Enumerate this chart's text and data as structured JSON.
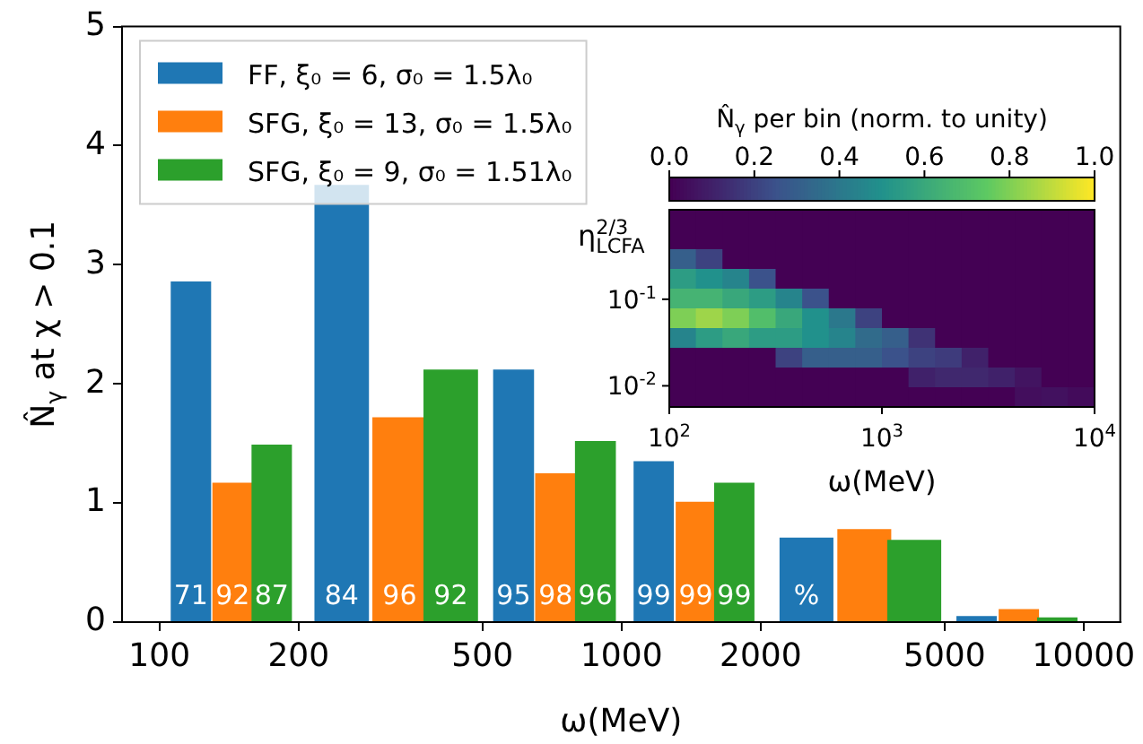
{
  "chart_data": [
    {
      "type": "bar",
      "xlabel": "ω(MeV)",
      "ylabel": "N̂$_{γ}$ at χ > 0.1",
      "log": "x",
      "xlim": [
        83,
        12000
      ],
      "ylim": [
        0,
        5
      ],
      "xticks": [
        100,
        200,
        500,
        1000,
        2000,
        5000,
        10000
      ],
      "yticks": [
        0,
        1,
        2,
        3,
        4,
        5
      ],
      "legend": "top left",
      "annotations": [
        {
          "text": "71",
          "x": 117,
          "y": 0
        },
        {
          "text": "84",
          "x": 248,
          "y": 0
        },
        {
          "text": "95",
          "x": 584,
          "y": 0
        },
        {
          "text": "99",
          "x": 1174,
          "y": 0
        },
        {
          "text": "%",
          "x": 2513,
          "y": 0
        },
        {
          "text": "92",
          "x": 144,
          "y": 0
        },
        {
          "text": "96",
          "x": 331,
          "y": 0
        },
        {
          "text": "98",
          "x": 720,
          "y": 0
        },
        {
          "text": "99",
          "x": 1448,
          "y": 0
        },
        {
          "text": "87",
          "x": 175,
          "y": 0
        },
        {
          "text": "92",
          "x": 427,
          "y": 0
        },
        {
          "text": "96",
          "x": 878,
          "y": 0
        },
        {
          "text": "99",
          "x": 1754,
          "y": 0
        }
      ],
      "series": [
        {
          "name": "FF, ξ₀ = 6, σ₀ = 1.5λ₀",
          "color": "#1f77b4",
          "x": [
            117,
            248,
            584,
            1174,
            2513,
            5866
          ],
          "values": [
            2.86,
            3.67,
            2.12,
            1.35,
            0.71,
            0.05
          ]
        },
        {
          "name": "SFG, ξ₀ = 13, σ₀ = 1.5λ₀",
          "color": "#ff7f0e",
          "x": [
            144,
            331,
            720,
            1448,
            3352,
            7240
          ],
          "values": [
            1.17,
            1.72,
            1.25,
            1.01,
            0.78,
            0.11
          ]
        },
        {
          "name": "SFG, ξ₀ = 9, σ₀ = 1.51λ₀",
          "color": "#2ca02c",
          "x": [
            175,
            427,
            878,
            1754,
            4300,
            8770
          ],
          "values": [
            1.49,
            2.12,
            1.52,
            1.17,
            0.69,
            0.04
          ]
        }
      ]
    },
    {
      "type": "heatmap",
      "xlabel": "ω(MeV)",
      "ylabel": "η$^{2/3}$$_{LCFA}$",
      "clabel": "N̂$_{γ}$ per bin (norm. to unity)",
      "log": "xy",
      "xlim": [
        100,
        10000
      ],
      "ylim": [
        0.0057,
        1.08
      ],
      "xticks": [
        {
          "value": 100,
          "label": "10$^{2}$"
        },
        {
          "value": 1000,
          "label": "10$^{3}$"
        },
        {
          "value": 10000,
          "label": "10$^{4}$"
        }
      ],
      "yticks": [
        {
          "value": 0.1,
          "label": "10$^{-1}$"
        },
        {
          "value": 0.01,
          "label": "10$^{-2}$"
        }
      ],
      "clim": [
        0,
        1
      ],
      "cticks": [
        {
          "value": 0,
          "label": "0.0"
        },
        0.2,
        0.4,
        0.6,
        0.8,
        {
          "value": 1,
          "label": "1.0"
        }
      ],
      "cells": [
        [
          0,
          0,
          0,
          0,
          0,
          0,
          0,
          0,
          0,
          0,
          0,
          0,
          0,
          0,
          0,
          0
        ],
        [
          0,
          0,
          0,
          0,
          0,
          0,
          0,
          0,
          0,
          0,
          0,
          0,
          0,
          0,
          0,
          0
        ],
        [
          0.3,
          0.2,
          0,
          0,
          0,
          0,
          0,
          0,
          0,
          0,
          0,
          0,
          0,
          0,
          0,
          0
        ],
        [
          0.55,
          0.5,
          0.45,
          0.25,
          0,
          0,
          0,
          0,
          0,
          0,
          0,
          0,
          0,
          0,
          0,
          0
        ],
        [
          0.65,
          0.65,
          0.6,
          0.55,
          0.45,
          0.25,
          0,
          0,
          0,
          0,
          0,
          0,
          0,
          0,
          0,
          0
        ],
        [
          0.8,
          0.85,
          0.8,
          0.7,
          0.6,
          0.5,
          0.4,
          0.2,
          0,
          0,
          0,
          0,
          0,
          0,
          0,
          0
        ],
        [
          0.45,
          0.55,
          0.6,
          0.55,
          0.55,
          0.5,
          0.45,
          0.35,
          0.3,
          0.15,
          0,
          0,
          0,
          0,
          0,
          0
        ],
        [
          0,
          0,
          0,
          0,
          0.2,
          0.3,
          0.3,
          0.3,
          0.25,
          0.2,
          0.18,
          0.1,
          0,
          0,
          0,
          0
        ],
        [
          0,
          0,
          0,
          0,
          0,
          0,
          0,
          0,
          0,
          0.1,
          0.12,
          0.12,
          0.1,
          0.06,
          0,
          0
        ],
        [
          0,
          0,
          0,
          0,
          0,
          0,
          0,
          0,
          0,
          0,
          0,
          0,
          0,
          0.04,
          0.05,
          0.03
        ]
      ]
    }
  ]
}
